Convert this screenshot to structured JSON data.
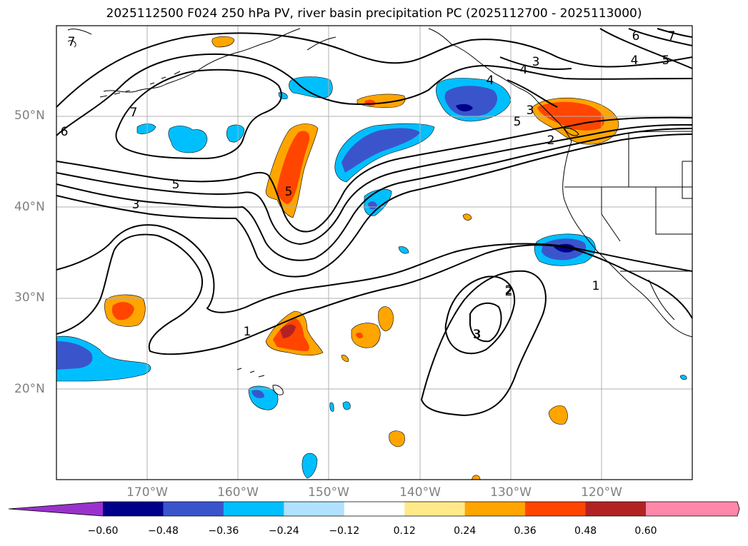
{
  "title": "2025112500 F024 250 hPa PV, river basin precipitation PC (2025112700 - 2025113000)",
  "lat_labels": [
    "50°N",
    "40°N",
    "30°N",
    "20°N"
  ],
  "lon_labels": [
    "170°W",
    "160°W",
    "150°W",
    "140°W",
    "130°W",
    "120°W"
  ],
  "contour_labels": [
    "6",
    "7",
    "7",
    "5",
    "3",
    "5",
    "3",
    "4",
    "4",
    "5",
    "6",
    "7",
    "4",
    "5",
    "2",
    "2",
    "3",
    "1",
    "1",
    "2",
    "3",
    "3"
  ],
  "colorbar": {
    "ticks": [
      "−0.60",
      "−0.48",
      "−0.36",
      "−0.24",
      "−0.12",
      "0.12",
      "0.24",
      "0.36",
      "0.48",
      "0.60"
    ],
    "colors": [
      "#9932cc",
      "#00008b",
      "#3a55cc",
      "#00bfff",
      "#b0e2ff",
      "#ffffff",
      "#ffea8a",
      "#ffa500",
      "#ff4500",
      "#b22222",
      "#ff88aa"
    ]
  },
  "colors": {
    "land_outline": "#000000",
    "grid": "#b0b0b0",
    "contour": "#000000"
  }
}
